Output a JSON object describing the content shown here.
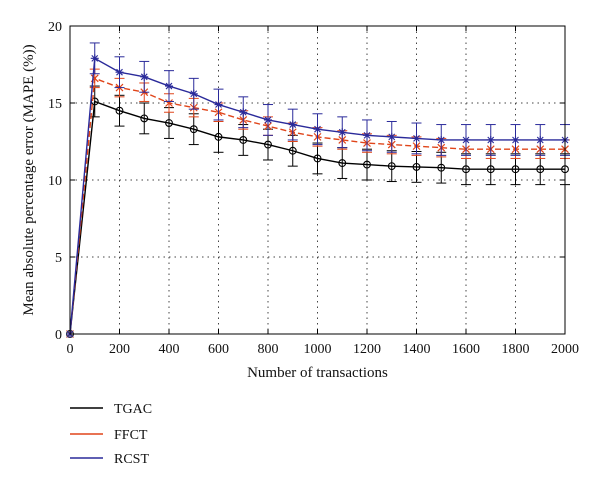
{
  "chart_data": {
    "type": "line",
    "xlabel": "Number of transactions",
    "ylabel": "Mean absolute percentage error (MAPE (%))",
    "xlim": [
      0,
      2000
    ],
    "ylim": [
      0,
      20
    ],
    "xticks": [
      0,
      200,
      400,
      600,
      800,
      1000,
      1200,
      1400,
      1600,
      1800,
      2000
    ],
    "yticks": [
      0,
      5,
      10,
      15,
      20
    ],
    "grid": true,
    "legend_position": "below",
    "x": [
      0,
      100,
      200,
      300,
      400,
      500,
      600,
      700,
      800,
      900,
      1000,
      1100,
      1200,
      1300,
      1400,
      1500,
      1600,
      1700,
      1800,
      1900,
      2000
    ],
    "series": [
      {
        "name": "TGAC",
        "color": "#000000",
        "marker": "circle",
        "values": [
          0,
          15.1,
          14.5,
          14.0,
          13.7,
          13.3,
          12.8,
          12.6,
          12.3,
          11.9,
          11.4,
          11.1,
          11.0,
          10.9,
          10.85,
          10.8,
          10.7,
          10.7,
          10.7,
          10.7,
          10.7
        ],
        "errors": [
          0,
          1.0,
          1.0,
          1.0,
          1.0,
          1.0,
          1.0,
          1.0,
          1.0,
          1.0,
          1.0,
          1.0,
          1.0,
          1.0,
          1.0,
          1.0,
          1.0,
          1.0,
          1.0,
          1.0,
          1.0
        ]
      },
      {
        "name": "FFCT",
        "color": "#e0451a",
        "marker": "x",
        "values": [
          0,
          16.6,
          16.0,
          15.7,
          15.0,
          14.7,
          14.4,
          13.9,
          13.5,
          13.1,
          12.8,
          12.6,
          12.4,
          12.3,
          12.2,
          12.1,
          12.0,
          12.0,
          12.0,
          12.0,
          12.0
        ],
        "errors": [
          0,
          0.6,
          0.6,
          0.6,
          0.6,
          0.6,
          0.6,
          0.6,
          0.6,
          0.6,
          0.6,
          0.6,
          0.6,
          0.6,
          0.6,
          0.6,
          0.6,
          0.6,
          0.6,
          0.6,
          0.6
        ]
      },
      {
        "name": "RCST",
        "color": "#2a2a9a",
        "marker": "star",
        "values": [
          0,
          17.9,
          17.0,
          16.7,
          16.1,
          15.6,
          14.9,
          14.4,
          13.9,
          13.6,
          13.3,
          13.1,
          12.9,
          12.8,
          12.7,
          12.6,
          12.6,
          12.6,
          12.6,
          12.6,
          12.6
        ],
        "errors": [
          0,
          1.0,
          1.0,
          1.0,
          1.0,
          1.0,
          1.0,
          1.0,
          1.0,
          1.0,
          1.0,
          1.0,
          1.0,
          1.0,
          1.0,
          1.0,
          1.0,
          1.0,
          1.0,
          1.0,
          1.0
        ]
      }
    ]
  }
}
